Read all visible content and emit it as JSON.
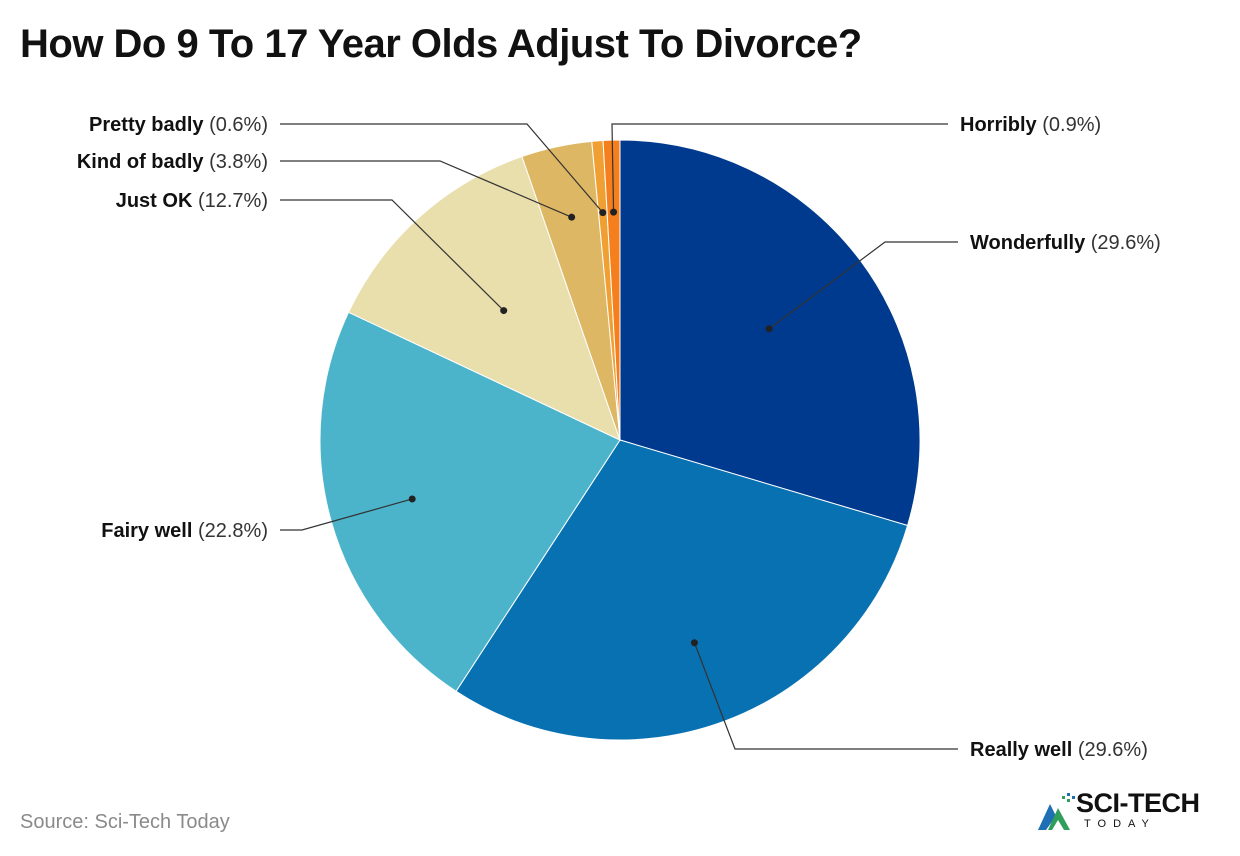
{
  "title": "How Do 9 To 17 Year Olds Adjust To Divorce?",
  "source": "Source: Sci-Tech Today",
  "logo": {
    "name": "SCI-TECH",
    "tagline": "TODAY"
  },
  "chart_data": {
    "type": "pie",
    "title": "How Do 9 To 17 Year Olds Adjust To Divorce?",
    "start": "12 o'clock, clockwise",
    "slices": [
      {
        "name": "Wonderfully",
        "value": 29.6,
        "pct_label": "(29.6%)",
        "color": "#003A8E"
      },
      {
        "name": "Really well",
        "value": 29.6,
        "pct_label": "(29.6%)",
        "color": "#0871B2"
      },
      {
        "name": "Fairy well",
        "value": 22.8,
        "pct_label": "(22.8%)",
        "color": "#4BB4CA"
      },
      {
        "name": "Just OK",
        "value": 12.7,
        "pct_label": "(12.7%)",
        "color": "#E8DFAD"
      },
      {
        "name": "Kind of badly",
        "value": 3.8,
        "pct_label": "(3.8%)",
        "color": "#DDB763"
      },
      {
        "name": "Pretty badly",
        "value": 0.6,
        "pct_label": "(0.6%)",
        "color": "#F0A032"
      },
      {
        "name": "Horribly",
        "value": 0.9,
        "pct_label": "(0.9%)",
        "color": "#F57F1D"
      }
    ]
  }
}
